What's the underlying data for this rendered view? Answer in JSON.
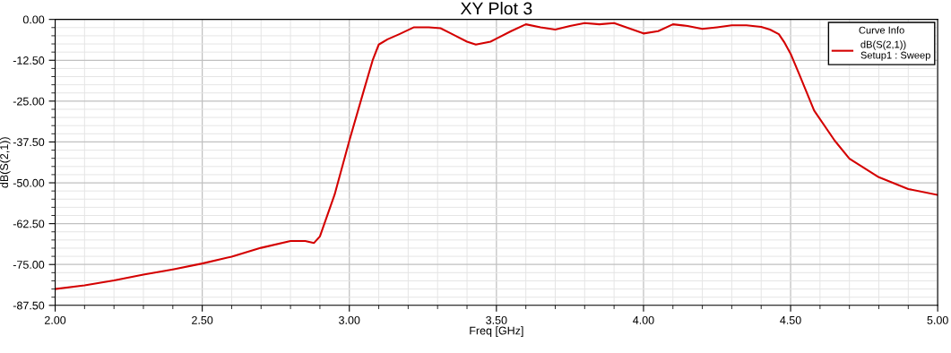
{
  "chart_data": {
    "type": "line",
    "title": "XY Plot 3",
    "xlabel": "Freq [GHz]",
    "ylabel": "dB(S(2,1))",
    "legend_title": "Curve Info",
    "x": [
      2.0,
      2.1,
      2.2,
      2.3,
      2.4,
      2.5,
      2.6,
      2.7,
      2.8,
      2.85,
      2.88,
      2.9,
      2.95,
      3.0,
      3.05,
      3.08,
      3.1,
      3.13,
      3.17,
      3.22,
      3.27,
      3.31,
      3.35,
      3.4,
      3.43,
      3.48,
      3.5,
      3.55,
      3.6,
      3.65,
      3.7,
      3.75,
      3.8,
      3.85,
      3.9,
      3.95,
      4.0,
      4.05,
      4.1,
      4.15,
      4.2,
      4.25,
      4.3,
      4.35,
      4.4,
      4.43,
      4.46,
      4.48,
      4.5,
      4.53,
      4.58,
      4.65,
      4.7,
      4.8,
      4.9,
      5.0
    ],
    "series": [
      {
        "name": "dB(S(2,1))\nSetup1 : Sweep",
        "color": "#d40000",
        "values": [
          -82.5,
          -81.4,
          -79.9,
          -78.1,
          -76.5,
          -74.7,
          -72.6,
          -69.9,
          -67.8,
          -67.8,
          -68.4,
          -66.4,
          -53.6,
          -37.1,
          -21.5,
          -12.3,
          -7.7,
          -6.1,
          -4.5,
          -2.4,
          -2.4,
          -2.7,
          -4.5,
          -6.8,
          -7.7,
          -6.8,
          -5.9,
          -3.6,
          -1.5,
          -2.4,
          -3.1,
          -2.0,
          -1.1,
          -1.5,
          -1.1,
          -2.7,
          -4.3,
          -3.6,
          -1.5,
          -2.0,
          -2.9,
          -2.4,
          -1.8,
          -1.8,
          -2.3,
          -3.1,
          -4.5,
          -7.2,
          -10.5,
          -16.9,
          -27.9,
          -37.1,
          -42.6,
          -48.3,
          -51.9,
          -53.7
        ]
      }
    ],
    "xlim": [
      2.0,
      5.0
    ],
    "xticks": [
      {
        "value": 2.0,
        "label": "2.00"
      },
      {
        "value": 2.5,
        "label": "2.50"
      },
      {
        "value": 3.0,
        "label": "3.00"
      },
      {
        "value": 3.5,
        "label": "3.50"
      },
      {
        "value": 4.0,
        "label": "4.00"
      },
      {
        "value": 4.5,
        "label": "4.50"
      },
      {
        "value": 5.0,
        "label": "5.00"
      }
    ],
    "ylim": [
      -87.5,
      0.0
    ],
    "yticks": [
      {
        "value": 0.0,
        "label": "0.00"
      },
      {
        "value": -12.5,
        "label": "-12.50"
      },
      {
        "value": -25.0,
        "label": "-25.00"
      },
      {
        "value": -37.5,
        "label": "-37.50"
      },
      {
        "value": -50.0,
        "label": "-50.00"
      },
      {
        "value": -62.5,
        "label": "-62.50"
      },
      {
        "value": -75.0,
        "label": "-75.00"
      },
      {
        "value": -87.5,
        "label": "-87.50"
      }
    ],
    "grid": true,
    "legend": "top right",
    "marker": "none",
    "line_style": "solid"
  }
}
